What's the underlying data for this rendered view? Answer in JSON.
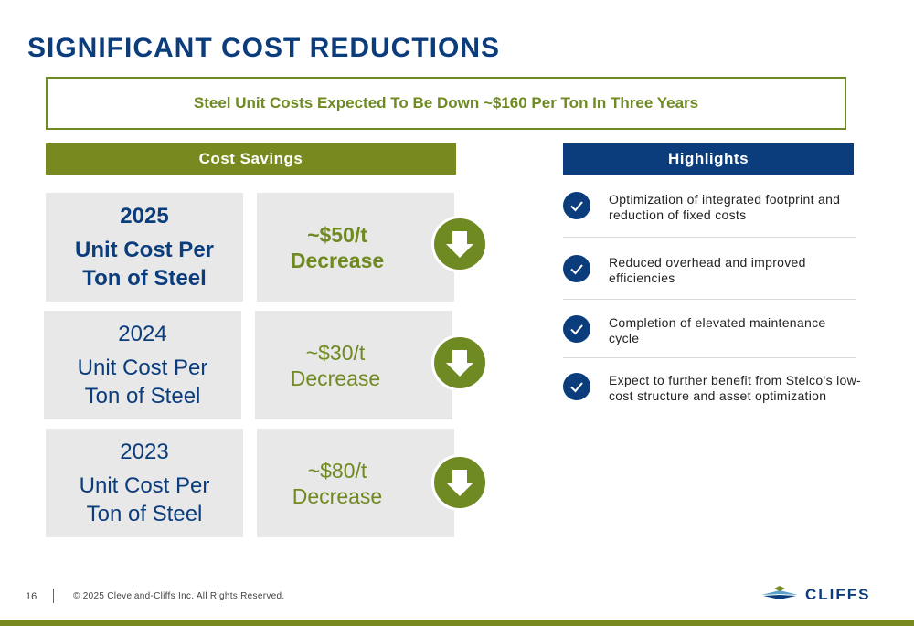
{
  "title": "SIGNIFICANT COST REDUCTIONS",
  "banner": "Steel Unit Costs Expected To Be Down ~$160 Per Ton In Three Years",
  "cost_savings": {
    "header": "Cost Savings",
    "rows": [
      {
        "year": "2025",
        "label": "Unit Cost Per Ton of Steel",
        "amount": "~$50/t",
        "change": "Decrease"
      },
      {
        "year": "2024",
        "label": "Unit Cost Per Ton of Steel",
        "amount": "~$30/t",
        "change": "Decrease"
      },
      {
        "year": "2023",
        "label": "Unit Cost Per Ton of Steel",
        "amount": "~$80/t",
        "change": "Decrease"
      }
    ]
  },
  "highlights": {
    "header": "Highlights",
    "items": [
      "Optimization of integrated footprint and reduction of fixed costs",
      "Reduced overhead and improved efficiencies",
      "Completion of elevated maintenance cycle",
      "Expect to further benefit from Stelco’s low-cost structure and asset optimization"
    ]
  },
  "footer": {
    "page_number": "16",
    "copyright": "© 2025 Cleveland-Cliffs Inc. All Rights Reserved.",
    "logo_text": "CLIFFS"
  },
  "colors": {
    "navy": "#0b3c7c",
    "olive": "#77891f",
    "box_gray": "#e8e8e8"
  },
  "icons": {
    "arrow": "arrow-down-icon",
    "check": "check-icon",
    "logo": "cliffs-logo-icon"
  }
}
